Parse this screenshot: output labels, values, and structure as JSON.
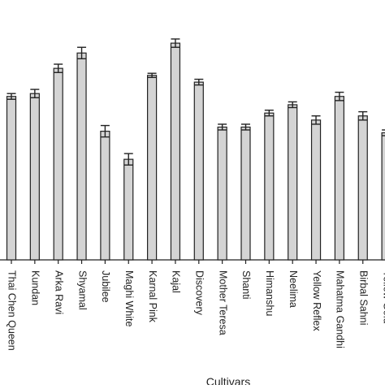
{
  "chart_data": {
    "type": "bar",
    "title": "",
    "xlabel": "Cultivars",
    "ylabel": "",
    "categories": [
      "Thai Chen Queen",
      "Kundan",
      "Arka Ravi",
      "Shyamal",
      "Jubilee",
      "Maghi White",
      "Karnal Pink",
      "Kajal",
      "Discovery",
      "Mother Teresa",
      "Shanti",
      "Himanshu",
      "Neelima",
      "Yellow Reflex",
      "Mahatma Gandhi",
      "Birbal Sahni",
      "Yellow Gold"
    ],
    "values": [
      62.9,
      64.0,
      73.7,
      79.6,
      49.5,
      38.7,
      71.0,
      83.4,
      68.4,
      51.1,
      51.1,
      56.5,
      59.7,
      53.8,
      62.9,
      55.4,
      48.9
    ],
    "errors": [
      1.1,
      1.6,
      1.6,
      2.2,
      2.2,
      2.2,
      0.8,
      1.6,
      1.1,
      1.1,
      1.1,
      1.1,
      1.1,
      1.6,
      1.6,
      1.6,
      1.1
    ],
    "ylim": [
      0,
      100
    ],
    "grid": false,
    "legend": "none",
    "bar_color": "#d4d4d4",
    "edge_color": "#222222"
  }
}
